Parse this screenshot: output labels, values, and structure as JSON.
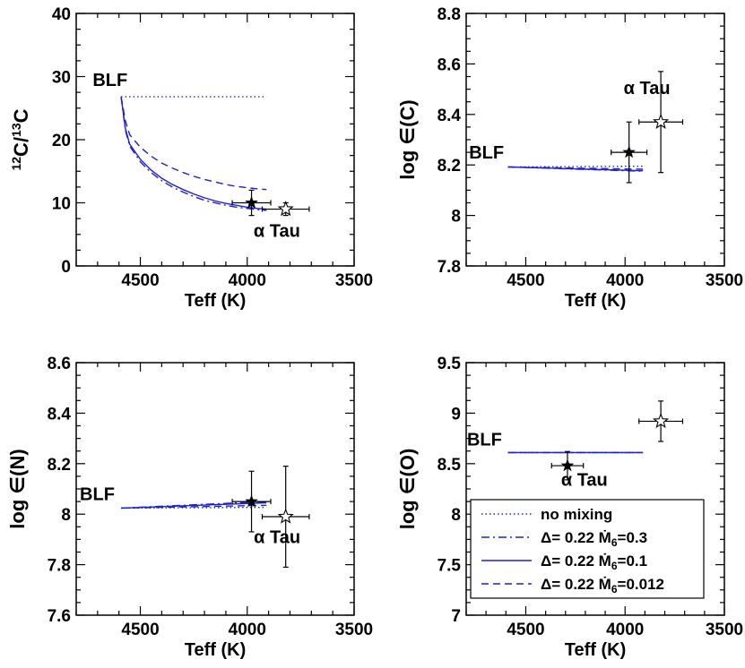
{
  "colors": {
    "model": "#1f1fd6",
    "frame": "#000000",
    "star": "#000000"
  },
  "chart_data": [
    {
      "type": "line",
      "xlabel": "Teff (K)",
      "ylabel": "12C/13C",
      "ylabel_rich": [
        {
          "t": "12",
          "sup": true
        },
        {
          "t": "C/",
          "sup": false
        },
        {
          "t": "13",
          "sup": true
        },
        {
          "t": "C",
          "sup": false
        }
      ],
      "xlim": [
        4800,
        3500
      ],
      "ylim": [
        0,
        40
      ],
      "xticks": [
        4500,
        4000,
        3500
      ],
      "yticks": [
        0,
        10,
        20,
        30,
        40
      ],
      "ytick_labels": [
        "0",
        "10",
        "20",
        "30",
        "40"
      ],
      "series": [
        {
          "name": "no mixing",
          "style": "dotted",
          "x": [
            4590,
            3910
          ],
          "y": [
            26.8,
            26.8
          ]
        },
        {
          "name": "Δ= 0.22 Ṁ6=0.3",
          "style": "dashdot",
          "x": [
            4590,
            4570,
            4550,
            4500,
            4450,
            4400,
            4350,
            4300,
            4250,
            4200,
            4150,
            4100,
            4050,
            4000,
            3950,
            3910
          ],
          "y": [
            26.8,
            21.5,
            19.0,
            16.5,
            14.8,
            13.5,
            12.5,
            11.7,
            11.0,
            10.4,
            10.0,
            9.6,
            9.3,
            9.1,
            8.9,
            8.8
          ]
        },
        {
          "name": "Δ= 0.22 Ṁ6=0.1",
          "style": "solid",
          "x": [
            4590,
            4570,
            4550,
            4500,
            4450,
            4400,
            4350,
            4300,
            4250,
            4200,
            4150,
            4100,
            4050,
            4000,
            3950,
            3910
          ],
          "y": [
            26.8,
            21.8,
            19.3,
            16.9,
            15.2,
            13.9,
            12.9,
            12.1,
            11.4,
            10.8,
            10.3,
            9.9,
            9.6,
            9.3,
            9.1,
            9.0
          ]
        },
        {
          "name": "Δ= 0.22 Ṁ6=0.012",
          "style": "dashed",
          "x": [
            4590,
            4570,
            4550,
            4500,
            4450,
            4400,
            4350,
            4300,
            4250,
            4200,
            4150,
            4100,
            4050,
            4000,
            3950,
            3910
          ],
          "y": [
            26.8,
            23.0,
            20.8,
            18.8,
            17.4,
            16.3,
            15.5,
            14.8,
            14.2,
            13.7,
            13.3,
            12.9,
            12.6,
            12.4,
            12.2,
            12.1
          ]
        }
      ],
      "stars": [
        {
          "kind": "filled",
          "x": 3980,
          "y": 10.0,
          "xerr": 90,
          "yerr": 2.0
        },
        {
          "kind": "open",
          "x": 3820,
          "y": 9.0,
          "xerr": 110,
          "yerr": 1.0
        }
      ],
      "annotations": [
        {
          "text": "BLF",
          "x": 4560,
          "y": 28.5,
          "anchor": "end"
        },
        {
          "text": "α Tau",
          "x": 3970,
          "y": 4.6,
          "anchor": "start"
        }
      ]
    },
    {
      "type": "line",
      "xlabel": "Teff (K)",
      "ylabel": "log ∈(C)",
      "xlim": [
        4800,
        3500
      ],
      "ylim": [
        7.8,
        8.8
      ],
      "xticks": [
        4500,
        4000,
        3500
      ],
      "yticks": [
        7.8,
        8.0,
        8.2,
        8.4,
        8.6,
        8.8
      ],
      "ytick_labels": [
        "7.8",
        "8",
        "8.2",
        "8.4",
        "8.6",
        "8.8"
      ],
      "series": [
        {
          "name": "no mixing",
          "style": "dotted",
          "x": [
            4590,
            3910
          ],
          "y": [
            8.192,
            8.195
          ]
        },
        {
          "name": "Δ= 0.22 Ṁ6=0.3",
          "style": "dashdot",
          "x": [
            4590,
            3910
          ],
          "y": [
            8.192,
            8.175
          ]
        },
        {
          "name": "Δ= 0.22 Ṁ6=0.1",
          "style": "solid",
          "x": [
            4590,
            3910
          ],
          "y": [
            8.192,
            8.177
          ]
        },
        {
          "name": "Δ= 0.22 Ṁ6=0.012",
          "style": "dashed",
          "x": [
            4590,
            3910
          ],
          "y": [
            8.192,
            8.183
          ]
        }
      ],
      "stars": [
        {
          "kind": "filled",
          "x": 3980,
          "y": 8.25,
          "xerr": 90,
          "yerr": 0.12
        },
        {
          "kind": "open",
          "x": 3820,
          "y": 8.37,
          "xerr": 110,
          "yerr": 0.2
        }
      ],
      "annotations": [
        {
          "text": "BLF",
          "x": 4610,
          "y": 8.225,
          "anchor": "end"
        },
        {
          "text": "α Tau",
          "x": 3890,
          "y": 8.48,
          "anchor": "middle"
        }
      ]
    },
    {
      "type": "line",
      "xlabel": "Teff (K)",
      "ylabel": "log ∈(N)",
      "xlim": [
        4800,
        3500
      ],
      "ylim": [
        7.6,
        8.6
      ],
      "xticks": [
        4500,
        4000,
        3500
      ],
      "yticks": [
        7.6,
        7.8,
        8.0,
        8.2,
        8.4,
        8.6
      ],
      "ytick_labels": [
        "7.6",
        "7.8",
        "8",
        "8.2",
        "8.4",
        "8.6"
      ],
      "series": [
        {
          "name": "no mixing",
          "style": "dotted",
          "x": [
            4590,
            3910
          ],
          "y": [
            8.024,
            8.027
          ]
        },
        {
          "name": "Δ= 0.22 Ṁ6=0.3",
          "style": "dashdot",
          "x": [
            4590,
            3910
          ],
          "y": [
            8.024,
            8.05
          ]
        },
        {
          "name": "Δ= 0.22 Ṁ6=0.1",
          "style": "solid",
          "x": [
            4590,
            3910
          ],
          "y": [
            8.024,
            8.045
          ]
        },
        {
          "name": "Δ= 0.22 Ṁ6=0.012",
          "style": "dashed",
          "x": [
            4590,
            3910
          ],
          "y": [
            8.024,
            8.035
          ]
        }
      ],
      "stars": [
        {
          "kind": "filled",
          "x": 3980,
          "y": 8.05,
          "xerr": 90,
          "yerr": 0.12
        },
        {
          "kind": "open",
          "x": 3820,
          "y": 7.99,
          "xerr": 110,
          "yerr": 0.2
        }
      ],
      "annotations": [
        {
          "text": "BLF",
          "x": 4620,
          "y": 8.055,
          "anchor": "end"
        },
        {
          "text": "α Tau",
          "x": 3860,
          "y": 7.885,
          "anchor": "middle"
        }
      ]
    },
    {
      "type": "line",
      "xlabel": "Teff (K)",
      "ylabel": "log ∈(O)",
      "xlim": [
        4800,
        3500
      ],
      "ylim": [
        7.0,
        9.5
      ],
      "xticks": [
        4500,
        4000,
        3500
      ],
      "yticks": [
        7.0,
        7.5,
        8.0,
        8.5,
        9.0,
        9.5
      ],
      "ytick_labels": [
        "7",
        "7.5",
        "8",
        "8.5",
        "9",
        "9.5"
      ],
      "series": [
        {
          "name": "no mixing",
          "style": "dotted",
          "x": [
            4590,
            3910
          ],
          "y": [
            8.61,
            8.61
          ]
        },
        {
          "name": "Δ= 0.22 Ṁ6=0.3",
          "style": "dashdot",
          "x": [
            4590,
            3910
          ],
          "y": [
            8.61,
            8.61
          ]
        },
        {
          "name": "Δ= 0.22 Ṁ6=0.1",
          "style": "solid",
          "x": [
            4590,
            3910
          ],
          "y": [
            8.61,
            8.61
          ]
        },
        {
          "name": "Δ= 0.22 Ṁ6=0.012",
          "style": "dashed",
          "x": [
            4590,
            3910
          ],
          "y": [
            8.61,
            8.61
          ]
        }
      ],
      "stars": [
        {
          "kind": "filled",
          "x": 4290,
          "y": 8.48,
          "xerr": 80,
          "yerr": 0.14
        },
        {
          "kind": "open",
          "x": 3820,
          "y": 8.92,
          "xerr": 110,
          "yerr": 0.2
        }
      ],
      "annotations": [
        {
          "text": "BLF",
          "x": 4620,
          "y": 8.68,
          "anchor": "end"
        },
        {
          "text": "α Tau",
          "x": 4205,
          "y": 8.28,
          "anchor": "middle"
        }
      ],
      "legend": {
        "placement": "bottom-right",
        "entries": [
          {
            "style": "dotted",
            "text": "no mixing"
          },
          {
            "style": "dashdot",
            "parts": [
              {
                "t": "Δ= 0.22 Ṁ",
                "sub": false
              },
              {
                "t": "6",
                "sub": true
              },
              {
                "t": "=0.3",
                "sub": false
              }
            ]
          },
          {
            "style": "solid",
            "parts": [
              {
                "t": "Δ= 0.22 Ṁ",
                "sub": false
              },
              {
                "t": "6",
                "sub": true
              },
              {
                "t": "=0.1",
                "sub": false
              }
            ]
          },
          {
            "style": "dashed",
            "parts": [
              {
                "t": "Δ= 0.22 Ṁ",
                "sub": false
              },
              {
                "t": "6",
                "sub": true
              },
              {
                "t": "=0.012",
                "sub": false
              }
            ]
          }
        ]
      }
    }
  ]
}
